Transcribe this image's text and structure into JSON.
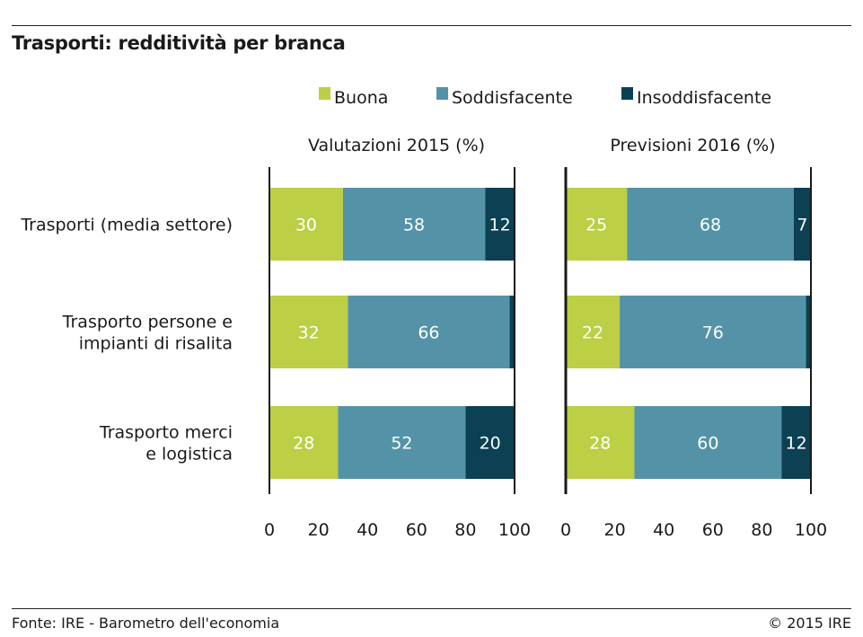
{
  "header": {
    "title": "Trasporti: redditività per branca"
  },
  "footer": {
    "source": "Fonte: IRE - Barometro dell'economia",
    "copyright": "© 2015 IRE"
  },
  "colors": {
    "Buona": "#bccf45",
    "Soddisfacente": "#5493a7",
    "Insoddisfacente": "#0c4153",
    "axis": "#1a1a1a"
  },
  "chart_data": {
    "type": "bar",
    "orientation": "horizontal",
    "stacked": true,
    "title": "Trasporti: redditività per branca",
    "legend": {
      "position": "top",
      "entries": [
        "Buona",
        "Soddisfacente",
        "Insoddisfacente"
      ]
    },
    "categories": [
      "Trasporti (media settore)",
      "Trasporto persone e\nimpianti di risalita",
      "Trasporto merci\ne logistica"
    ],
    "xlim": [
      0,
      100
    ],
    "xticks": [
      0,
      20,
      40,
      60,
      80,
      100
    ],
    "grid": false,
    "panels": [
      {
        "title": "Valutazioni 2015 (%)",
        "series": [
          {
            "name": "Buona",
            "values": [
              30,
              32,
              28
            ],
            "labels": [
              "30",
              "32",
              "28"
            ]
          },
          {
            "name": "Soddisfacente",
            "values": [
              58,
              66,
              52
            ],
            "labels": [
              "58",
              "66",
              "52"
            ]
          },
          {
            "name": "Insoddisfacente",
            "values": [
              12,
              2,
              20
            ],
            "labels": [
              "12",
              "",
              "20"
            ]
          }
        ]
      },
      {
        "title": "Previsioni 2016 (%)",
        "series": [
          {
            "name": "Buona",
            "values": [
              25,
              22,
              28
            ],
            "labels": [
              "25",
              "22",
              "28"
            ]
          },
          {
            "name": "Soddisfacente",
            "values": [
              68,
              76,
              60
            ],
            "labels": [
              "68",
              "76",
              "60"
            ]
          },
          {
            "name": "Insoddisfacente",
            "values": [
              7,
              2,
              12
            ],
            "labels": [
              "7",
              "",
              "12"
            ]
          }
        ]
      }
    ]
  }
}
